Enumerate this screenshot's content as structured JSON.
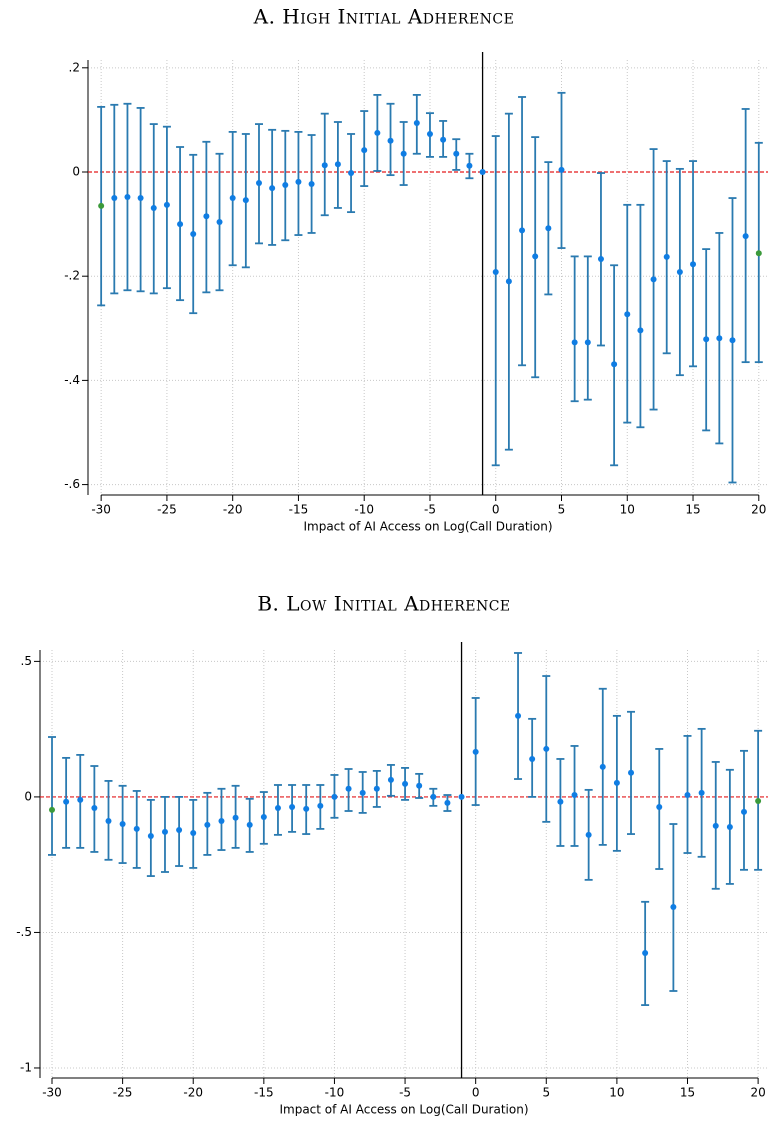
{
  "chart_data": [
    {
      "type": "errorbar",
      "title": "A. High Initial Adherence",
      "x_label": "Impact of AI Access on Log(Call Duration)",
      "x": [
        -30,
        -29,
        -28,
        -27,
        -26,
        -25,
        -24,
        -23,
        -22,
        -21,
        -20,
        -19,
        -18,
        -17,
        -16,
        -15,
        -14,
        -13,
        -12,
        -11,
        -10,
        -9,
        -8,
        -7,
        -6,
        -5,
        -4,
        -3,
        -2,
        -1,
        0,
        1,
        2,
        3,
        4,
        5,
        6,
        7,
        8,
        9,
        10,
        11,
        12,
        13,
        14,
        15,
        16,
        17,
        18,
        19,
        20
      ],
      "values": [
        -0.065,
        -0.05,
        -0.048,
        -0.05,
        -0.069,
        -0.063,
        -0.1,
        -0.119,
        -0.085,
        -0.096,
        -0.05,
        -0.054,
        -0.021,
        -0.031,
        -0.025,
        -0.019,
        -0.023,
        0.013,
        0.015,
        -0.002,
        0.042,
        0.075,
        0.06,
        0.035,
        0.094,
        0.073,
        0.062,
        0.035,
        0.012,
        0,
        -0.192,
        -0.21,
        -0.112,
        -0.162,
        -0.108,
        0.004,
        -0.327,
        -0.327,
        -0.167,
        -0.369,
        -0.273,
        -0.304,
        -0.206,
        -0.163,
        -0.192,
        -0.177,
        -0.321,
        -0.319,
        -0.323,
        -0.123,
        -0.156
      ],
      "lower": [
        -0.256,
        -0.233,
        -0.227,
        -0.229,
        -0.233,
        -0.223,
        -0.246,
        -0.271,
        -0.231,
        -0.227,
        -0.179,
        -0.183,
        -0.137,
        -0.14,
        -0.131,
        -0.121,
        -0.117,
        -0.083,
        -0.069,
        -0.077,
        -0.027,
        0.002,
        -0.006,
        -0.025,
        0.035,
        0.029,
        0.029,
        0.004,
        -0.012,
        null,
        -0.563,
        -0.533,
        -0.371,
        -0.394,
        -0.235,
        -0.146,
        -0.44,
        -0.437,
        -0.333,
        -0.563,
        -0.481,
        -0.49,
        -0.456,
        -0.348,
        -0.39,
        -0.373,
        -0.496,
        -0.521,
        -0.596,
        -0.365,
        -0.365
      ],
      "upper": [
        0.125,
        0.129,
        0.131,
        0.123,
        0.092,
        0.087,
        0.048,
        0.033,
        0.058,
        0.035,
        0.077,
        0.073,
        0.092,
        0.081,
        0.079,
        0.077,
        0.071,
        0.112,
        0.096,
        0.073,
        0.117,
        0.148,
        0.131,
        0.096,
        0.148,
        0.113,
        0.098,
        0.063,
        0.035,
        null,
        0.069,
        0.112,
        0.144,
        0.067,
        0.019,
        0.152,
        -0.162,
        -0.162,
        -0.002,
        -0.179,
        -0.063,
        -0.063,
        0.044,
        0.021,
        0.006,
        0.021,
        -0.148,
        -0.117,
        -0.05,
        0.121,
        0.056
      ],
      "xlim": [
        -31,
        20.7
      ],
      "ylim": [
        -0.62,
        0.215
      ],
      "xticks": [
        -30,
        -25,
        -20,
        -15,
        -10,
        -5,
        0,
        5,
        10,
        15,
        20
      ],
      "yticks": [
        {
          "value": -0.6,
          "label": "-.6"
        },
        {
          "value": -0.4,
          "label": "-.4"
        },
        {
          "value": -0.2,
          "label": "-.2"
        },
        0,
        {
          "value": 0.2,
          "label": ".2"
        }
      ],
      "grid": true,
      "reference_x": -1,
      "reference_y": 0,
      "color": "#0f7de3",
      "errorbar_color": "#2a7ab0",
      "endpoint_color": "#3b9a3b",
      "reference_x_color": "#000000",
      "reference_y_color": "#e41a1c"
    },
    {
      "type": "errorbar",
      "title": "B. Low Initial Adherence",
      "x_label": "Impact of AI Access on Log(Call Duration)",
      "x": [
        -30,
        -29,
        -28,
        -27,
        -26,
        -25,
        -24,
        -23,
        -22,
        -21,
        -20,
        -19,
        -18,
        -17,
        -16,
        -15,
        -14,
        -13,
        -12,
        -11,
        -10,
        -9,
        -8,
        -7,
        -6,
        -5,
        -4,
        -3,
        -2,
        -1,
        0,
        1,
        2,
        3,
        4,
        5,
        6,
        7,
        8,
        9,
        10,
        11,
        12,
        13,
        14,
        15,
        16,
        17,
        18,
        19,
        20
      ],
      "values": [
        -0.048,
        -0.018,
        -0.011,
        -0.041,
        -0.089,
        -0.1,
        -0.118,
        -0.144,
        -0.129,
        -0.122,
        -0.133,
        -0.103,
        -0.089,
        -0.077,
        -0.103,
        -0.074,
        -0.041,
        -0.037,
        -0.044,
        -0.033,
        0,
        0.03,
        0.015,
        0.03,
        0.063,
        0.048,
        0.041,
        0,
        -0.022,
        0,
        0.166,
        null,
        null,
        0.299,
        0.14,
        0.177,
        -0.018,
        0.007,
        -0.14,
        0.111,
        0.052,
        0.089,
        -0.576,
        -0.037,
        -0.406,
        0.007,
        0.015,
        -0.107,
        -0.111,
        -0.055,
        -0.015
      ],
      "lower": [
        -0.214,
        -0.188,
        -0.188,
        -0.203,
        -0.232,
        -0.244,
        -0.262,
        -0.292,
        -0.277,
        -0.255,
        -0.262,
        -0.214,
        -0.196,
        -0.188,
        -0.203,
        -0.173,
        -0.14,
        -0.129,
        -0.137,
        -0.118,
        -0.077,
        -0.052,
        -0.059,
        -0.037,
        0.004,
        -0.011,
        -0.004,
        -0.033,
        -0.052,
        null,
        -0.03,
        null,
        null,
        0.066,
        0,
        -0.092,
        -0.181,
        -0.181,
        -0.306,
        -0.177,
        -0.199,
        -0.137,
        -0.768,
        -0.266,
        -0.716,
        -0.207,
        -0.221,
        -0.339,
        -0.321,
        -0.269,
        -0.269
      ],
      "upper": [
        0.221,
        0.144,
        0.155,
        0.114,
        0.059,
        0.041,
        0.022,
        -0.011,
        0,
        0,
        -0.011,
        0.015,
        0.03,
        0.041,
        -0.007,
        0.018,
        0.044,
        0.044,
        0.044,
        0.044,
        0.081,
        0.103,
        0.092,
        0.096,
        0.118,
        0.107,
        0.085,
        0.03,
        0.007,
        null,
        0.365,
        null,
        null,
        0.531,
        0.288,
        0.446,
        0.14,
        0.188,
        0.026,
        0.399,
        0.299,
        0.314,
        -0.387,
        0.177,
        -0.1,
        0.225,
        0.251,
        0.129,
        0.1,
        0.17,
        0.244
      ],
      "xlim": [
        -30.85,
        20.7
      ],
      "ylim": [
        -1.037,
        0.542
      ],
      "xticks": [
        -30,
        -25,
        -20,
        -15,
        -10,
        -5,
        0,
        5,
        10,
        15,
        20
      ],
      "yticks": [
        -1,
        {
          "value": -0.5,
          "label": "-.5"
        },
        0,
        {
          "value": 0.5,
          "label": ".5"
        }
      ],
      "grid": true,
      "reference_x": -1,
      "reference_y": 0,
      "color": "#0f7de3",
      "errorbar_color": "#2a7ab0",
      "endpoint_color": "#3b9a3b",
      "reference_x_color": "#000000",
      "reference_y_color": "#e41a1c"
    }
  ]
}
